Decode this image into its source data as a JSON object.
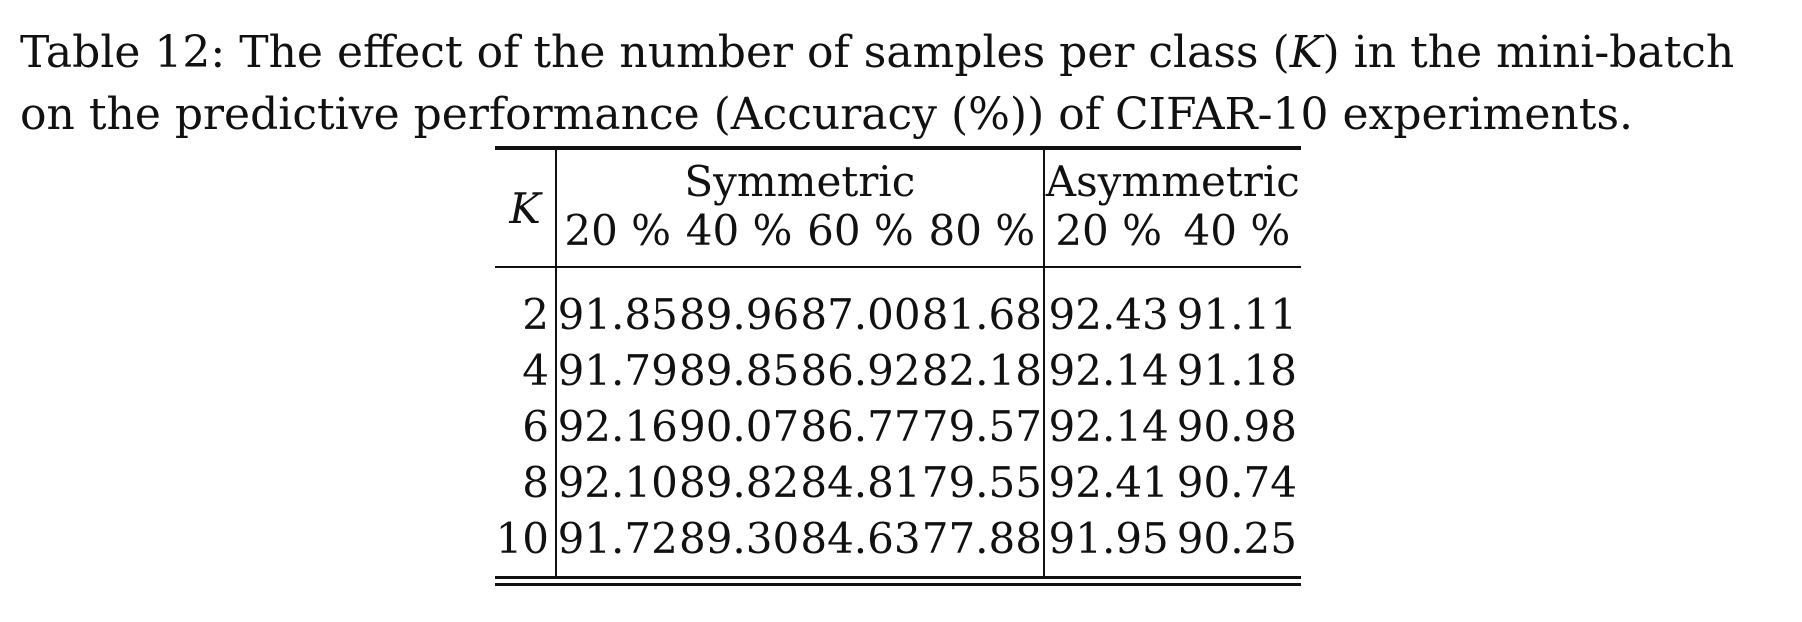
{
  "caption": {
    "line1_prefix": "Table 12: The effect of the number of samples per class (",
    "line1_var": "K",
    "line1_suffix": ") in the mini-batch",
    "line2": "on the predictive performance (Accuracy (%)) of CIFAR-10 experiments."
  },
  "table": {
    "k_header": "K",
    "groups": {
      "symmetric": "Symmetric",
      "asymmetric": "Asymmetric"
    },
    "subheaders": [
      "20 %",
      "40 %",
      "60 %",
      "80 %",
      "20 %",
      "40 %"
    ],
    "rows": [
      {
        "k": "2",
        "values": [
          "91.85",
          "89.96",
          "87.00",
          "81.68",
          "92.43",
          "91.11"
        ]
      },
      {
        "k": "4",
        "values": [
          "91.79",
          "89.85",
          "86.92",
          "82.18",
          "92.14",
          "91.18"
        ]
      },
      {
        "k": "6",
        "values": [
          "92.16",
          "90.07",
          "86.77",
          "79.57",
          "92.14",
          "90.98"
        ]
      },
      {
        "k": "8",
        "values": [
          "92.10",
          "89.82",
          "84.81",
          "79.55",
          "92.41",
          "90.74"
        ]
      },
      {
        "k": "10",
        "values": [
          "91.72",
          "89.30",
          "84.63",
          "77.88",
          "91.95",
          "90.25"
        ]
      }
    ]
  }
}
